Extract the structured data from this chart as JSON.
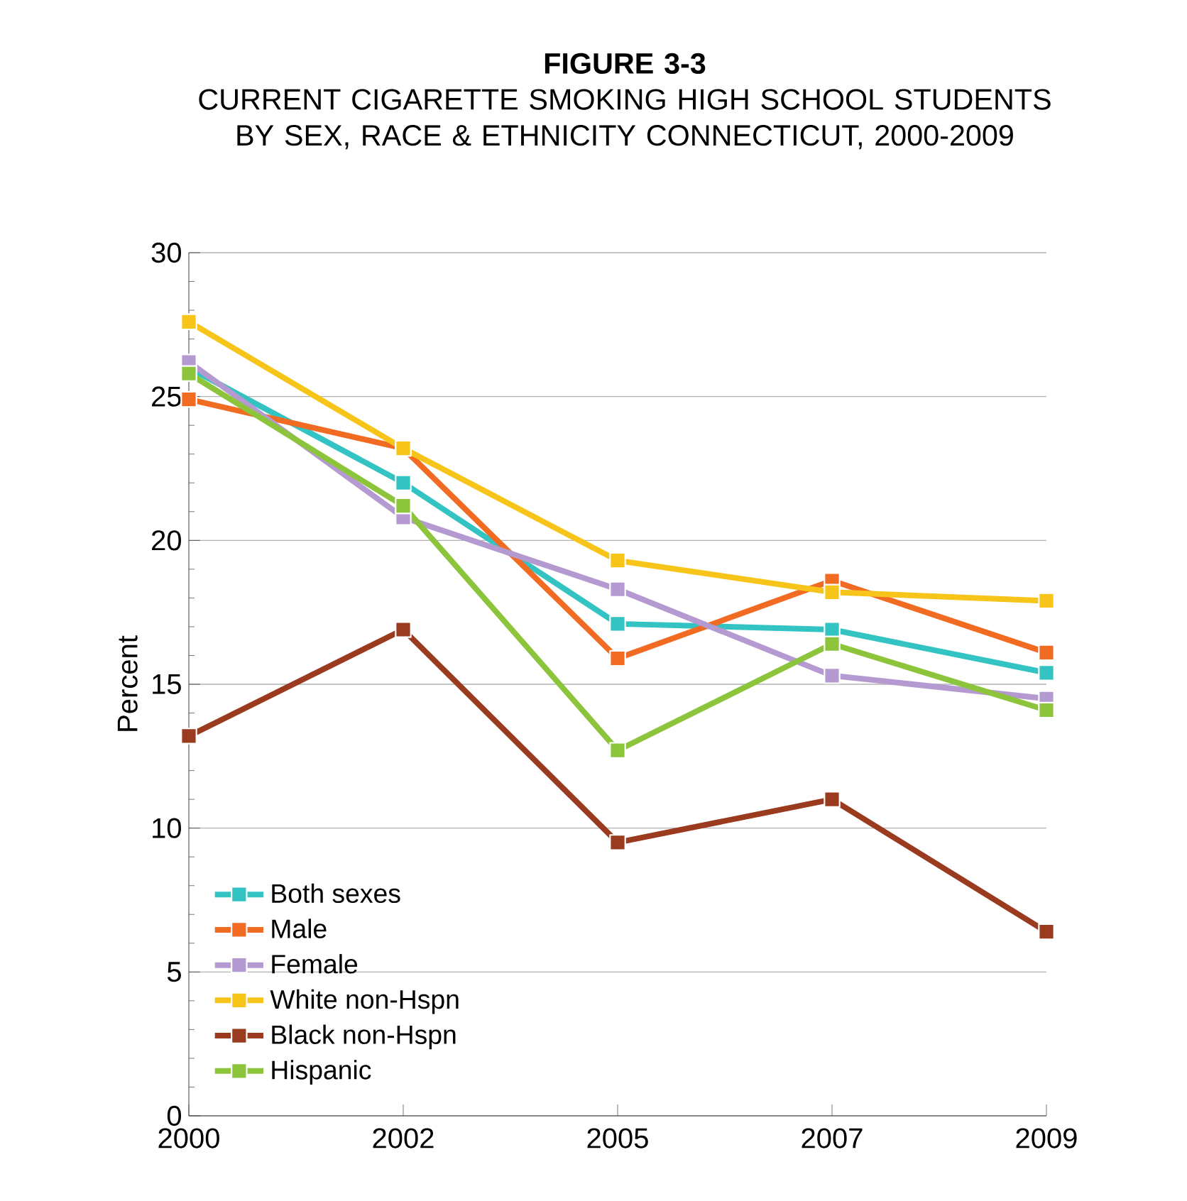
{
  "chart_data": {
    "type": "line",
    "title": "FIGURE 3-3",
    "subtitle": "CURRENT CIGARETTE SMOKING HIGH SCHOOL STUDENTS BY SEX, RACE & ETHNICITY CONNECTICUT, 2000-2009",
    "ylabel": "Percent",
    "categories": [
      "2000",
      "2002",
      "2005",
      "2007",
      "2009"
    ],
    "series": [
      {
        "name": "Both sexes",
        "color": "#33c3c3",
        "values": [
          26.0,
          22.0,
          17.1,
          16.9,
          15.4
        ]
      },
      {
        "name": "Male",
        "color": "#f26b22",
        "values": [
          24.9,
          23.2,
          15.9,
          18.6,
          16.1
        ]
      },
      {
        "name": "Female",
        "color": "#b49ad0",
        "values": [
          26.2,
          20.8,
          18.3,
          15.3,
          14.5
        ]
      },
      {
        "name": "White non-Hspn",
        "color": "#f7c51a",
        "values": [
          27.6,
          23.2,
          19.3,
          18.2,
          17.9
        ]
      },
      {
        "name": "Black non-Hspn",
        "color": "#9a3a1e",
        "values": [
          13.2,
          16.9,
          9.5,
          11.0,
          6.4
        ]
      },
      {
        "name": "Hispanic",
        "color": "#8cc43c",
        "values": [
          25.8,
          21.2,
          12.7,
          16.4,
          14.1
        ]
      }
    ],
    "ylim": [
      0,
      30
    ],
    "yticks": [
      0,
      5,
      10,
      15,
      20,
      25,
      30
    ],
    "grid": "y",
    "legend": "bottom left",
    "marker": "square",
    "line_style": "solid"
  }
}
